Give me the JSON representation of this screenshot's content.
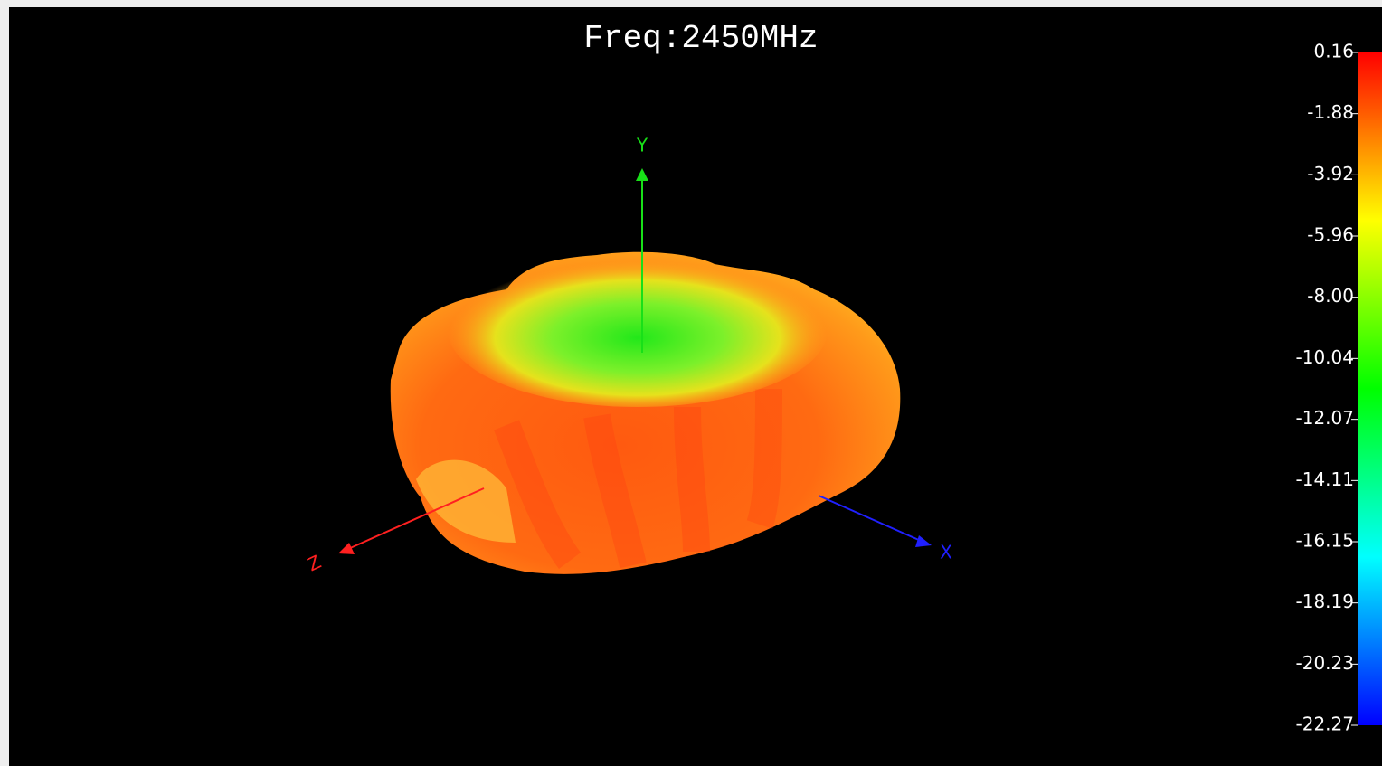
{
  "title": "Freq:2450MHz",
  "axes": {
    "x": "X",
    "y": "Y",
    "z": "Z"
  },
  "colorbar": {
    "range": [
      -22.27,
      0.16
    ],
    "ticks": [
      0.16,
      -1.88,
      -3.92,
      -5.96,
      {
        "value": -8,
        "label": "-8.00"
      },
      -10.04,
      -12.07,
      -14.11,
      -16.15,
      -18.19,
      -20.23,
      -22.27
    ]
  }
}
